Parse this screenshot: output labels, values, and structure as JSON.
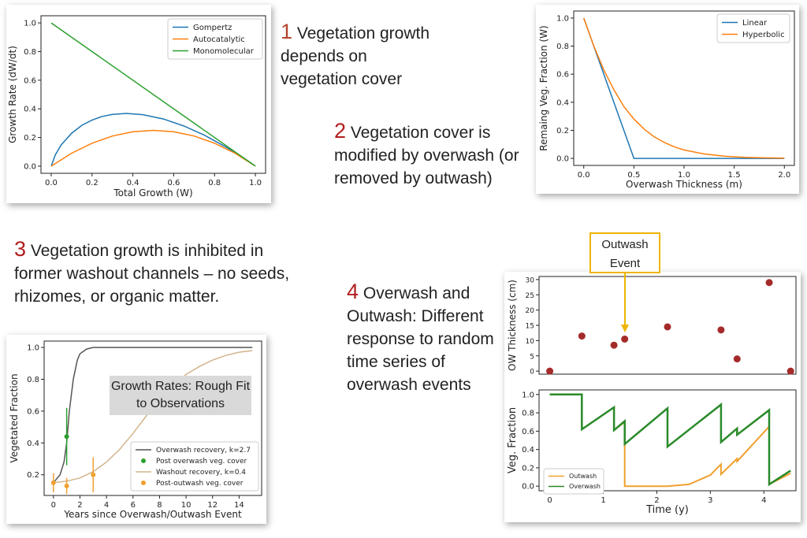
{
  "captions": {
    "c1": {
      "num": "1",
      "text": "Vegetation growth depends on vegetation cover"
    },
    "c2": {
      "num": "2",
      "text": "Vegetation cover is modified by overwash (or removed by outwash)"
    },
    "c3": {
      "num": "3",
      "text": "Vegetation growth is inhibited in former washout channels – no seeds, rhizomes, or organic matter."
    },
    "c4": {
      "num": "4",
      "text": "Overwash and Outwash: Different response to random time series of overwash events"
    }
  },
  "annotations": {
    "outwash_event": "Outwash Event",
    "growth_rates": "Growth Rates: Rough Fit to Observations"
  },
  "colors": {
    "blue": "#1f77b4",
    "orange": "#ff7f0e",
    "green": "#2ca02c",
    "dark_red": "#a52a2a",
    "gray": "#555555",
    "tan": "#d2b48c",
    "caption_number": "#b5452b"
  },
  "chart_data": [
    {
      "type": "line",
      "xlabel": "Total Growth (W)",
      "ylabel": "Growth Rate (dW/dt)",
      "xlim": [
        -0.05,
        1.05
      ],
      "ylim": [
        -0.05,
        1.05
      ],
      "xticks": [
        "0.0",
        "0.2",
        "0.4",
        "0.6",
        "0.8",
        "1.0"
      ],
      "yticks": [
        "0.0",
        "0.2",
        "0.4",
        "0.6",
        "0.8",
        "1.0"
      ],
      "legend": "top-right",
      "series": [
        {
          "name": "Gompertz",
          "color": "#1f77b4",
          "x": [
            0,
            0.02,
            0.05,
            0.1,
            0.15,
            0.2,
            0.25,
            0.3,
            0.368,
            0.45,
            0.55,
            0.65,
            0.75,
            0.85,
            0.95,
            1.0
          ],
          "y": [
            0,
            0.078,
            0.15,
            0.23,
            0.285,
            0.322,
            0.347,
            0.361,
            0.368,
            0.359,
            0.329,
            0.28,
            0.216,
            0.138,
            0.049,
            0
          ]
        },
        {
          "name": "Autocatalytic",
          "color": "#ff7f0e",
          "x": [
            0,
            0.1,
            0.2,
            0.3,
            0.4,
            0.5,
            0.6,
            0.7,
            0.8,
            0.9,
            1.0
          ],
          "y": [
            0,
            0.09,
            0.16,
            0.21,
            0.24,
            0.25,
            0.24,
            0.21,
            0.16,
            0.09,
            0
          ]
        },
        {
          "name": "Monomolecular",
          "color": "#2ca02c",
          "x": [
            0,
            1.0
          ],
          "y": [
            1.0,
            0
          ]
        }
      ]
    },
    {
      "type": "line",
      "xlabel": "Overwash Thickness (m)",
      "ylabel": "Remaing Veg. Fraction (W)",
      "xlim": [
        -0.1,
        2.1
      ],
      "ylim": [
        -0.05,
        1.05
      ],
      "xticks": [
        "0.0",
        "0.5",
        "1.0",
        "1.5",
        "2.0"
      ],
      "yticks": [
        "0.0",
        "0.2",
        "0.4",
        "0.6",
        "0.8",
        "1.0"
      ],
      "legend": "top-right",
      "series": [
        {
          "name": "Linear",
          "color": "#1f77b4",
          "x": [
            0,
            0.5,
            2.0
          ],
          "y": [
            1.0,
            0,
            0
          ]
        },
        {
          "name": "Hyperbolic",
          "color": "#ff7f0e",
          "x": [
            0,
            0.1,
            0.2,
            0.3,
            0.4,
            0.5,
            0.6,
            0.7,
            0.8,
            0.9,
            1.0,
            1.2,
            1.4,
            1.6,
            1.8,
            2.0
          ],
          "y": [
            1.0,
            0.8,
            0.63,
            0.49,
            0.37,
            0.28,
            0.21,
            0.155,
            0.115,
            0.083,
            0.06,
            0.032,
            0.016,
            0.008,
            0.004,
            0.002
          ]
        }
      ]
    },
    {
      "type": "line",
      "xlabel": "Years since Overwash/Outwash Event",
      "ylabel": "Vegetated Fraction",
      "xlim": [
        -0.7,
        15.7
      ],
      "ylim": [
        0.07,
        1.04
      ],
      "xticks": [
        "0",
        "2",
        "4",
        "6",
        "8",
        "10",
        "12",
        "14"
      ],
      "yticks": [
        "0.2",
        "0.4",
        "0.6",
        "0.8",
        "1.0"
      ],
      "legend": "bottom-right",
      "series": [
        {
          "name": "Overwash recovery, k=2.7",
          "color": "#555555",
          "x": [
            0,
            0.5,
            0.8,
            1.0,
            1.2,
            1.5,
            1.8,
            2.0,
            2.5,
            3,
            4,
            15
          ],
          "y": [
            0.15,
            0.2,
            0.28,
            0.4,
            0.6,
            0.8,
            0.92,
            0.96,
            0.99,
            1.0,
            1.0,
            1.0
          ]
        },
        {
          "name": "Post overwash veg. cover",
          "color": "#2ca02c",
          "x": [
            1.0
          ],
          "y": [
            0.44
          ],
          "yerr": [
            0.18
          ]
        },
        {
          "name": "Washout recovery, k=0.4",
          "color": "#d2b48c",
          "x": [
            0,
            1,
            2,
            3,
            4,
            5,
            6,
            7,
            8,
            9,
            10,
            11,
            12,
            13,
            14,
            15
          ],
          "y": [
            0.15,
            0.16,
            0.18,
            0.22,
            0.28,
            0.36,
            0.46,
            0.57,
            0.67,
            0.76,
            0.83,
            0.88,
            0.92,
            0.95,
            0.97,
            0.98
          ]
        },
        {
          "name": "Post-outwash veg. cover",
          "color": "#f0a030",
          "x": [
            0,
            1,
            3
          ],
          "y": [
            0.15,
            0.13,
            0.2
          ],
          "yerr": [
            0.06,
            0.05,
            0.11
          ]
        }
      ]
    },
    {
      "type": "scatter",
      "ylabel": "OW Thickness (cm)",
      "xlim": [
        -0.2,
        4.6
      ],
      "ylim": [
        -1,
        31
      ],
      "yticks": [
        "0",
        "5",
        "10",
        "15",
        "20",
        "25",
        "30"
      ],
      "series": [
        {
          "name": "",
          "color": "#a52a2a",
          "x": [
            0,
            0.6,
            1.2,
            1.4,
            2.2,
            3.2,
            3.5,
            4.1,
            4.5
          ],
          "y": [
            0,
            11.5,
            8.5,
            10.5,
            14.5,
            13.5,
            4,
            29,
            0
          ]
        }
      ]
    },
    {
      "type": "line",
      "xlabel": "Time (y)",
      "ylabel": "Veg. Fraction",
      "xlim": [
        -0.2,
        4.6
      ],
      "ylim": [
        -0.05,
        1.05
      ],
      "xticks": [
        "0",
        "1",
        "2",
        "3",
        "4"
      ],
      "yticks": [
        "0.0",
        "0.2",
        "0.4",
        "0.6",
        "0.8",
        "1.0"
      ],
      "legend": "bottom-left",
      "series": [
        {
          "name": "Outwash",
          "color": "#f0a030",
          "x": [
            0,
            0.6,
            0.6,
            1.2,
            1.2,
            1.4,
            1.4,
            2.2,
            2.6,
            3.0,
            3.2,
            3.2,
            3.5,
            3.5,
            4.1,
            4.1,
            4.5
          ],
          "y": [
            1,
            1,
            0.62,
            0.86,
            0.61,
            0.7,
            0,
            0,
            0.02,
            0.12,
            0.24,
            0.13,
            0.3,
            0.27,
            0.65,
            0.02,
            0.14
          ]
        },
        {
          "name": "Overwash",
          "color": "#2a8a2a",
          "x": [
            0,
            0.6,
            0.6,
            1.2,
            1.2,
            1.4,
            1.4,
            2.2,
            2.2,
            3.2,
            3.2,
            3.5,
            3.5,
            4.1,
            4.1,
            4.5
          ],
          "y": [
            1,
            1,
            0.62,
            0.86,
            0.61,
            0.71,
            0.46,
            0.85,
            0.43,
            0.89,
            0.48,
            0.63,
            0.56,
            0.83,
            0.02,
            0.17
          ]
        }
      ]
    }
  ]
}
